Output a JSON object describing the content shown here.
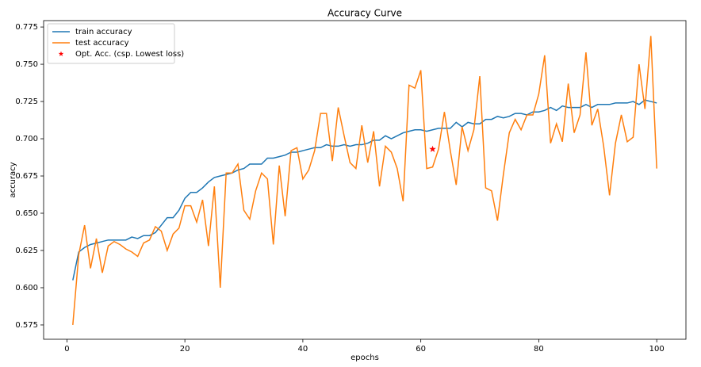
{
  "chart_data": {
    "type": "line",
    "title": "Accuracy Curve",
    "x_label": "epochs",
    "y_label": "accuracy",
    "x": [
      1,
      2,
      3,
      4,
      5,
      6,
      7,
      8,
      9,
      10,
      11,
      12,
      13,
      14,
      15,
      16,
      17,
      18,
      19,
      20,
      21,
      22,
      23,
      24,
      25,
      26,
      27,
      28,
      29,
      30,
      31,
      32,
      33,
      34,
      35,
      36,
      37,
      38,
      39,
      40,
      41,
      42,
      43,
      44,
      45,
      46,
      47,
      48,
      49,
      50,
      51,
      52,
      53,
      54,
      55,
      56,
      57,
      58,
      59,
      60,
      61,
      62,
      63,
      64,
      65,
      66,
      67,
      68,
      69,
      70,
      71,
      72,
      73,
      74,
      75,
      76,
      77,
      78,
      79,
      80,
      81,
      82,
      83,
      84,
      85,
      86,
      87,
      88,
      89,
      90,
      91,
      92,
      93,
      94,
      95,
      96,
      97,
      98,
      99,
      100
    ],
    "series": [
      {
        "name": "train accuracy",
        "color": "#1f77b4",
        "values": [
          0.605,
          0.624,
          0.627,
          0.629,
          0.63,
          0.631,
          0.632,
          0.632,
          0.632,
          0.632,
          0.634,
          0.633,
          0.635,
          0.635,
          0.637,
          0.642,
          0.647,
          0.647,
          0.652,
          0.66,
          0.664,
          0.664,
          0.667,
          0.671,
          0.674,
          0.675,
          0.676,
          0.677,
          0.679,
          0.68,
          0.683,
          0.683,
          0.683,
          0.687,
          0.687,
          0.688,
          0.689,
          0.691,
          0.691,
          0.692,
          0.693,
          0.694,
          0.694,
          0.696,
          0.695,
          0.695,
          0.696,
          0.695,
          0.696,
          0.696,
          0.697,
          0.699,
          0.699,
          0.702,
          0.7,
          0.702,
          0.704,
          0.705,
          0.706,
          0.706,
          0.705,
          0.706,
          0.707,
          0.707,
          0.707,
          0.711,
          0.708,
          0.711,
          0.71,
          0.71,
          0.713,
          0.713,
          0.715,
          0.714,
          0.715,
          0.717,
          0.717,
          0.716,
          0.718,
          0.718,
          0.719,
          0.721,
          0.719,
          0.722,
          0.721,
          0.721,
          0.721,
          0.723,
          0.721,
          0.723,
          0.723,
          0.723,
          0.724,
          0.724,
          0.724,
          0.725,
          0.723,
          0.726,
          0.725,
          0.724
        ]
      },
      {
        "name": "test accuracy",
        "color": "#ff7f0e",
        "values": [
          0.575,
          0.622,
          0.642,
          0.613,
          0.633,
          0.61,
          0.628,
          0.631,
          0.629,
          0.626,
          0.624,
          0.621,
          0.63,
          0.632,
          0.641,
          0.638,
          0.625,
          0.636,
          0.64,
          0.655,
          0.655,
          0.644,
          0.659,
          0.628,
          0.668,
          0.6,
          0.677,
          0.677,
          0.683,
          0.652,
          0.646,
          0.665,
          0.677,
          0.673,
          0.629,
          0.682,
          0.648,
          0.692,
          0.694,
          0.673,
          0.679,
          0.692,
          0.717,
          0.717,
          0.685,
          0.721,
          0.702,
          0.684,
          0.68,
          0.709,
          0.684,
          0.705,
          0.668,
          0.695,
          0.691,
          0.68,
          0.658,
          0.736,
          0.734,
          0.746,
          0.68,
          0.681,
          0.693,
          0.718,
          0.692,
          0.669,
          0.708,
          0.692,
          0.706,
          0.742,
          0.667,
          0.665,
          0.645,
          0.676,
          0.704,
          0.713,
          0.706,
          0.716,
          0.716,
          0.73,
          0.756,
          0.697,
          0.71,
          0.698,
          0.737,
          0.704,
          0.716,
          0.758,
          0.709,
          0.72,
          0.695,
          0.662,
          0.697,
          0.716,
          0.698,
          0.701,
          0.75,
          0.72,
          0.769,
          0.68
        ]
      },
      {
        "name": "Opt. Acc. (csp. Lowest loss)",
        "color": "#ff0000",
        "marker": "star",
        "x": [
          62
        ],
        "values": [
          0.693
        ]
      }
    ],
    "xlim": [
      -3.95,
      104.95
    ],
    "ylim": [
      0.5654,
      0.7793
    ],
    "xticks": [
      0,
      20,
      40,
      60,
      80,
      100
    ],
    "yticks": [
      0.575,
      {
        "value": 0.6,
        "label": "0.600"
      },
      0.625,
      {
        "value": 0.65,
        "label": "0.650"
      },
      0.675,
      {
        "value": 0.7,
        "label": "0.700"
      },
      0.725,
      {
        "value": 0.75,
        "label": "0.750"
      },
      0.775
    ],
    "legend": "upper left"
  }
}
